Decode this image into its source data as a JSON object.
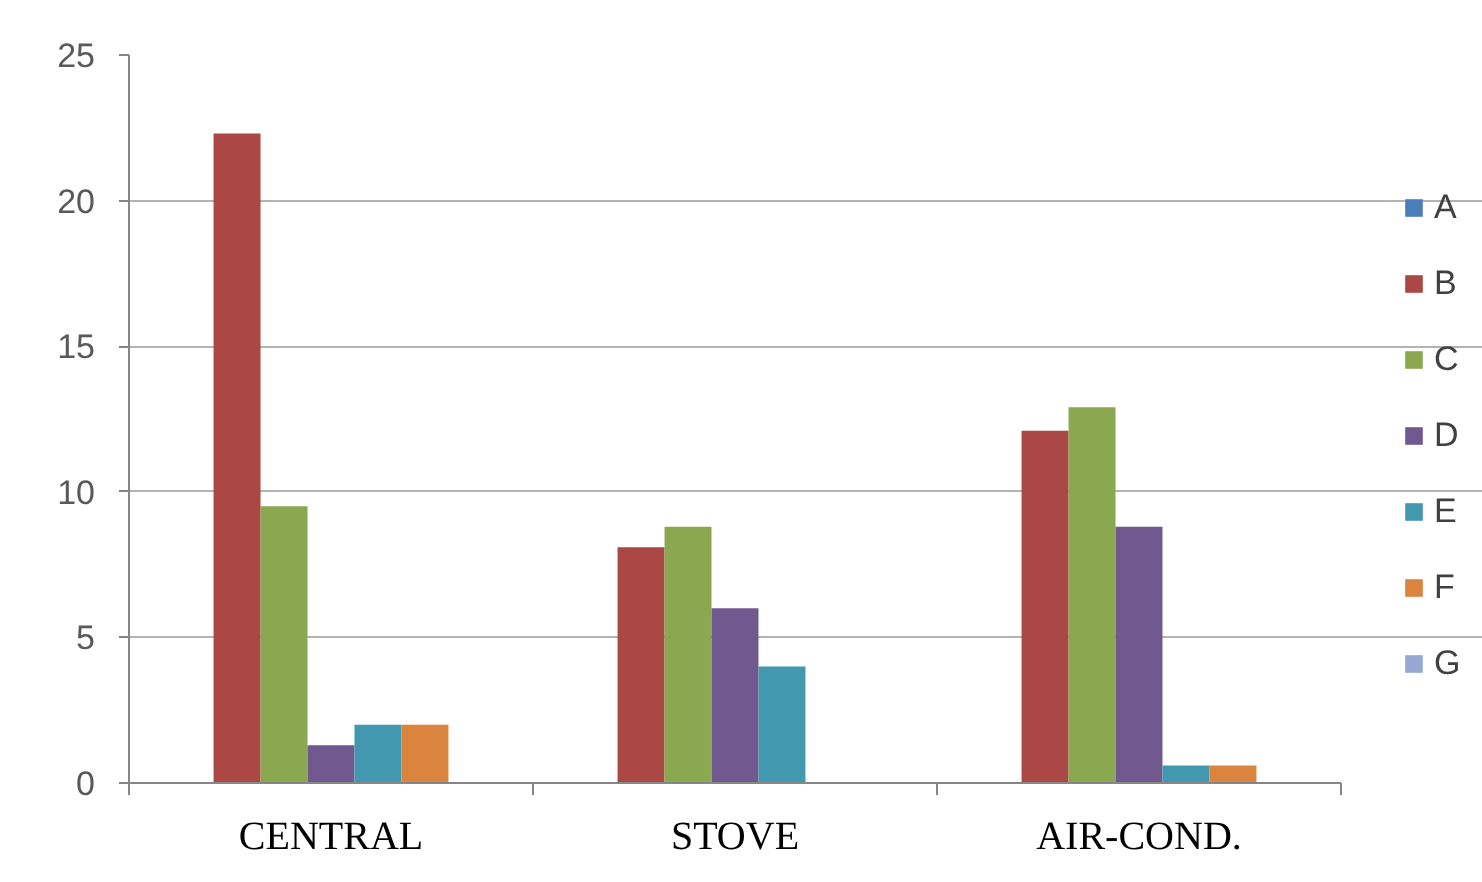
{
  "chart_data": {
    "type": "bar",
    "categories": [
      "CENTRAL",
      "STOVE",
      "AIR-COND."
    ],
    "series": [
      {
        "name": "A",
        "color": "#4a7ebb",
        "values": [
          null,
          null,
          null
        ]
      },
      {
        "name": "B",
        "color": "#ab4744",
        "values": [
          22.3,
          8.1,
          12.1
        ]
      },
      {
        "name": "C",
        "color": "#8aa84f",
        "values": [
          9.5,
          8.8,
          12.9
        ]
      },
      {
        "name": "D",
        "color": "#71588f",
        "values": [
          1.3,
          6.0,
          8.8
        ]
      },
      {
        "name": "E",
        "color": "#4198af",
        "values": [
          2.0,
          4.0,
          0.6
        ]
      },
      {
        "name": "F",
        "color": "#db843d",
        "values": [
          2.0,
          null,
          0.6
        ]
      },
      {
        "name": "G",
        "color": "#93a9d4",
        "values": [
          null,
          null,
          null
        ]
      }
    ],
    "ylim": [
      0,
      25
    ],
    "yticks": [
      0,
      5,
      10,
      15,
      20,
      25
    ],
    "grid": "y",
    "legend": "right"
  }
}
